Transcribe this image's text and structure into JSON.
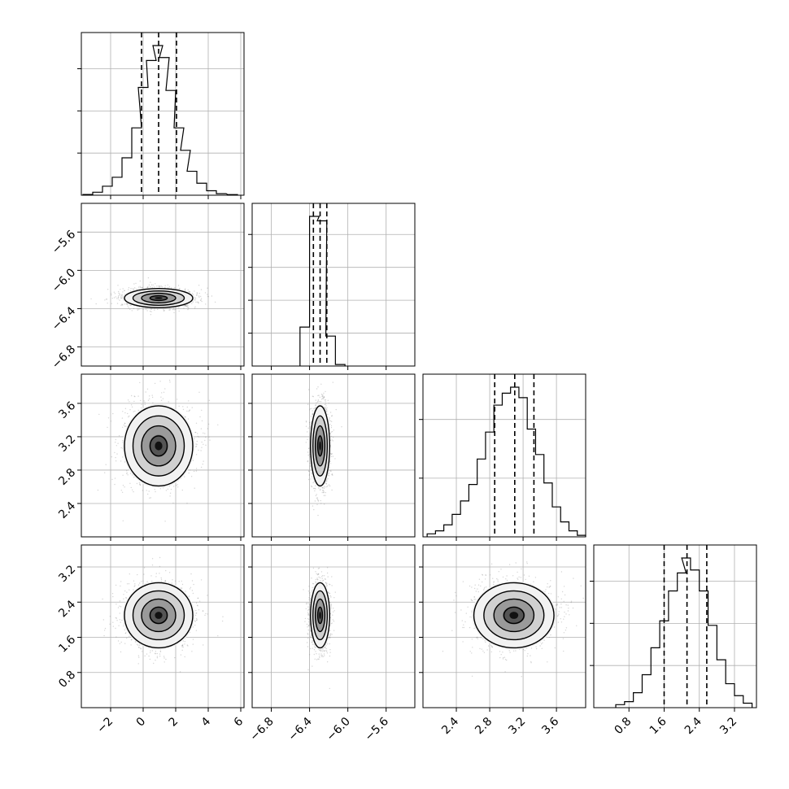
{
  "chart_data": {
    "type": "corner",
    "parameters": [
      {
        "ticks": [
          "−2",
          "0",
          "2",
          "4",
          "6"
        ],
        "tick_values": [
          -2,
          0,
          2,
          4,
          6
        ],
        "range": [
          -3.8,
          6.2
        ],
        "hist_ticks": 3,
        "quantiles": [
          -0.1,
          0.95,
          2.05
        ],
        "hist": [
          [
            -3.4,
            0.005
          ],
          [
            -2.8,
            0.02
          ],
          [
            -2.2,
            0.06
          ],
          [
            -1.6,
            0.12
          ],
          [
            -1.0,
            0.25
          ],
          [
            -0.4,
            0.45
          ],
          [
            0.0,
            0.72
          ],
          [
            0.5,
            0.9
          ],
          [
            0.9,
            1.0
          ],
          [
            1.3,
            0.92
          ],
          [
            1.7,
            0.7
          ],
          [
            2.2,
            0.45
          ],
          [
            2.6,
            0.3
          ],
          [
            3.0,
            0.16
          ],
          [
            3.6,
            0.08
          ],
          [
            4.2,
            0.03
          ],
          [
            4.8,
            0.01
          ],
          [
            5.5,
            0.004
          ]
        ]
      },
      {
        "ticks": [
          "−6.8",
          "−6.4",
          "−6.0",
          "−5.6"
        ],
        "tick_values": [
          -6.8,
          -6.4,
          -6.0,
          -5.6
        ],
        "range": [
          -7.0,
          -5.3
        ],
        "hist_ticks": 4,
        "quantiles": [
          -6.36,
          -6.29,
          -6.22
        ],
        "hist": [
          [
            -6.45,
            0.26
          ],
          [
            -6.35,
            1.0
          ],
          [
            -6.27,
            0.97
          ],
          [
            -6.18,
            0.2
          ],
          [
            -6.08,
            0.01
          ]
        ]
      },
      {
        "ticks": [
          "2.4",
          "2.8",
          "3.2",
          "3.6"
        ],
        "tick_values": [
          2.4,
          2.8,
          3.2,
          3.6
        ],
        "range": [
          2.0,
          3.95
        ],
        "hist_ticks": 2,
        "quantiles": [
          2.86,
          3.1,
          3.33
        ],
        "hist": [
          [
            2.1,
            0.02
          ],
          [
            2.2,
            0.04
          ],
          [
            2.3,
            0.08
          ],
          [
            2.4,
            0.15
          ],
          [
            2.5,
            0.24
          ],
          [
            2.6,
            0.35
          ],
          [
            2.7,
            0.52
          ],
          [
            2.8,
            0.7
          ],
          [
            2.9,
            0.88
          ],
          [
            3.0,
            0.96
          ],
          [
            3.1,
            1.0
          ],
          [
            3.2,
            0.93
          ],
          [
            3.3,
            0.72
          ],
          [
            3.4,
            0.55
          ],
          [
            3.5,
            0.36
          ],
          [
            3.6,
            0.2
          ],
          [
            3.7,
            0.1
          ],
          [
            3.8,
            0.04
          ],
          [
            3.9,
            0.01
          ]
        ]
      },
      {
        "ticks": [
          "0.8",
          "1.6",
          "2.4",
          "3.2"
        ],
        "tick_values": [
          0.8,
          1.6,
          2.4,
          3.2
        ],
        "range": [
          0.0,
          3.7
        ],
        "hist_ticks": 3,
        "quantiles": [
          1.6,
          2.12,
          2.57
        ],
        "hist": [
          [
            0.6,
            0.02
          ],
          [
            0.8,
            0.04
          ],
          [
            1.0,
            0.1
          ],
          [
            1.2,
            0.22
          ],
          [
            1.4,
            0.4
          ],
          [
            1.6,
            0.58
          ],
          [
            1.8,
            0.78
          ],
          [
            2.0,
            0.9
          ],
          [
            2.1,
            1.0
          ],
          [
            2.3,
            0.92
          ],
          [
            2.5,
            0.78
          ],
          [
            2.7,
            0.55
          ],
          [
            2.9,
            0.32
          ],
          [
            3.1,
            0.16
          ],
          [
            3.3,
            0.08
          ],
          [
            3.5,
            0.03
          ]
        ]
      }
    ],
    "pairs": [
      {
        "row": 1,
        "col": 0,
        "center": [
          0.95,
          -6.29
        ],
        "sigma": [
          1.05,
          0.05
        ],
        "rho": 0.0
      },
      {
        "row": 2,
        "col": 0,
        "center": [
          0.95,
          3.09
        ],
        "sigma": [
          1.05,
          0.24
        ],
        "rho": 0.0
      },
      {
        "row": 2,
        "col": 1,
        "center": [
          -6.29,
          3.09
        ],
        "sigma": [
          0.05,
          0.24
        ],
        "rho": 0.0
      },
      {
        "row": 3,
        "col": 0,
        "center": [
          0.95,
          2.1
        ],
        "sigma": [
          1.05,
          0.37
        ],
        "rho": 0.0
      },
      {
        "row": 3,
        "col": 1,
        "center": [
          -6.29,
          2.1
        ],
        "sigma": [
          0.05,
          0.37
        ],
        "rho": 0.0
      },
      {
        "row": 3,
        "col": 2,
        "center": [
          3.09,
          2.1
        ],
        "sigma": [
          0.24,
          0.37
        ],
        "rho": 0.0
      }
    ],
    "contour_levels_sigma": [
      0.5,
      1.0,
      1.5,
      2.0
    ],
    "grid": true,
    "title": "",
    "legend": "none"
  }
}
